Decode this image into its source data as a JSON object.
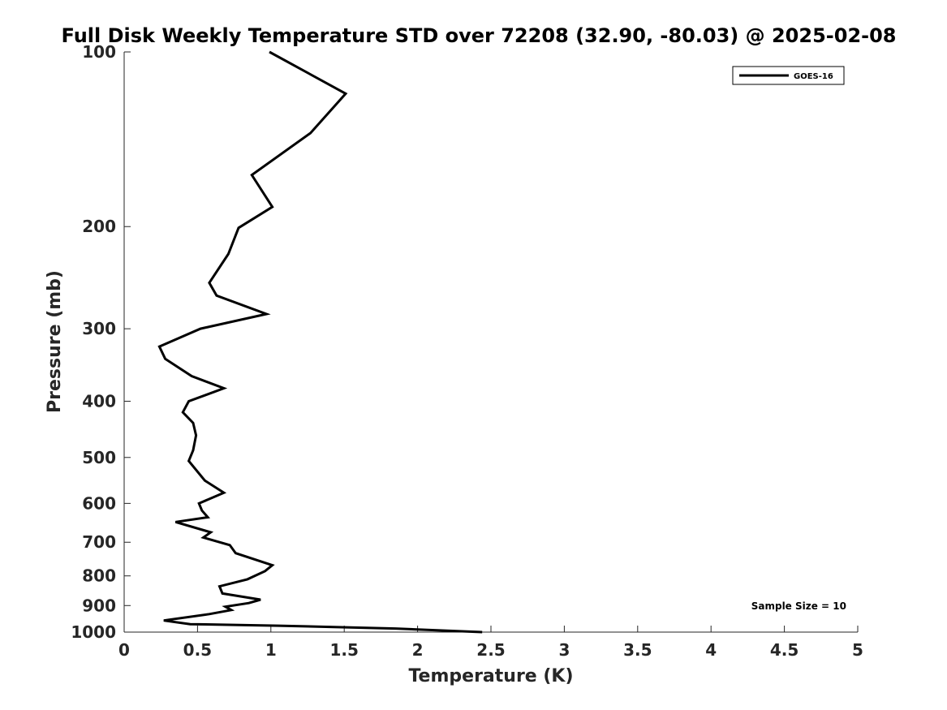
{
  "chart_data": {
    "type": "line",
    "title": "Full Disk Weekly Temperature STD over 72208 (32.90, -80.03) @ 2025-02-08",
    "xlabel": "Temperature (K)",
    "ylabel": "Pressure (mb)",
    "xlim": [
      0,
      5
    ],
    "ylim": [
      100,
      1000
    ],
    "y_scale": "log",
    "y_reversed": true,
    "grid": false,
    "x_ticks": [
      0,
      0.5,
      1,
      1.5,
      2,
      2.5,
      3,
      3.5,
      4,
      4.5,
      5
    ],
    "x_tick_labels": [
      "0",
      "0.5",
      "1",
      "1.5",
      "2",
      "2.5",
      "3",
      "3.5",
      "4",
      "4.5",
      "5"
    ],
    "y_ticks": [
      100,
      200,
      300,
      400,
      500,
      600,
      700,
      800,
      900,
      1000
    ],
    "y_tick_labels": [
      "100",
      "200",
      "300",
      "400",
      "500",
      "600",
      "700",
      "800",
      "900",
      "1000"
    ],
    "legend_position": "top-right",
    "annotation": "Sample Size = 10",
    "series": [
      {
        "name": "GOES-16",
        "color": "#000000",
        "points": [
          [
            0.99,
            100
          ],
          [
            1.51,
            118
          ],
          [
            1.27,
            138
          ],
          [
            0.87,
            163
          ],
          [
            1.01,
            185
          ],
          [
            0.78,
            201
          ],
          [
            0.71,
            223
          ],
          [
            0.58,
            250
          ],
          [
            0.63,
            263
          ],
          [
            0.97,
            283
          ],
          [
            0.52,
            300
          ],
          [
            0.24,
            322
          ],
          [
            0.28,
            338
          ],
          [
            0.46,
            362
          ],
          [
            0.68,
            380
          ],
          [
            0.44,
            400
          ],
          [
            0.4,
            418
          ],
          [
            0.47,
            436
          ],
          [
            0.49,
            458
          ],
          [
            0.47,
            486
          ],
          [
            0.44,
            507
          ],
          [
            0.55,
            548
          ],
          [
            0.68,
            575
          ],
          [
            0.51,
            600
          ],
          [
            0.53,
            617
          ],
          [
            0.57,
            634
          ],
          [
            0.35,
            646
          ],
          [
            0.59,
            673
          ],
          [
            0.54,
            687
          ],
          [
            0.72,
            708
          ],
          [
            0.76,
            731
          ],
          [
            1.01,
            767
          ],
          [
            0.96,
            785
          ],
          [
            0.84,
            811
          ],
          [
            0.65,
            834
          ],
          [
            0.67,
            858
          ],
          [
            0.93,
            879
          ],
          [
            0.85,
            891
          ],
          [
            0.69,
            904
          ],
          [
            0.73,
            916
          ],
          [
            0.58,
            931
          ],
          [
            0.27,
            955
          ],
          [
            0.45,
            969
          ],
          [
            1.05,
            975
          ],
          [
            1.85,
            986
          ],
          [
            2.44,
            1000
          ]
        ]
      }
    ]
  }
}
